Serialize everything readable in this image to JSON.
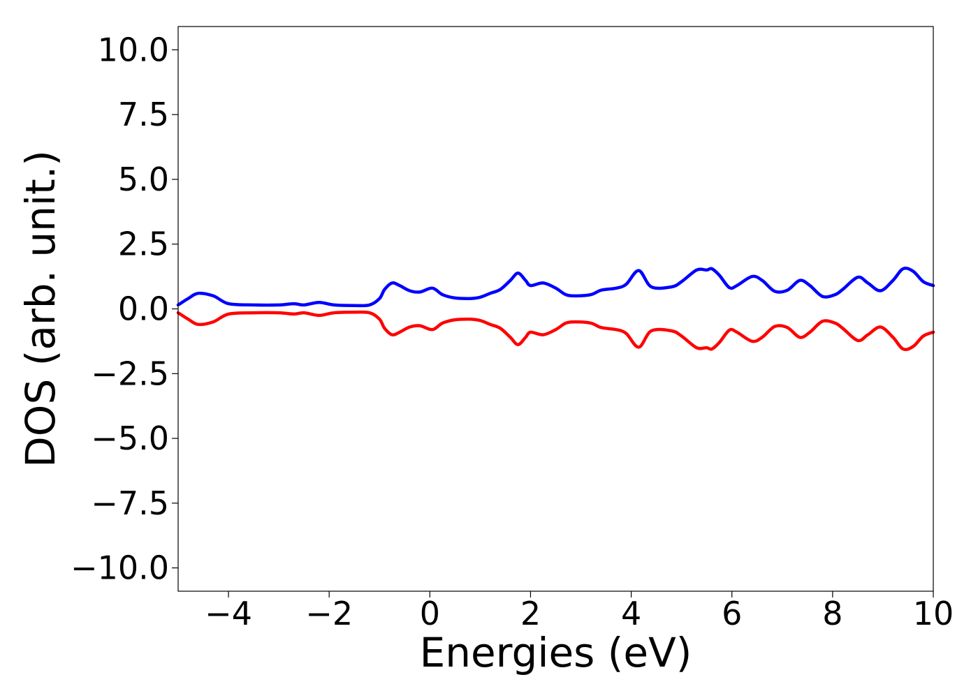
{
  "chart_data": {
    "type": "line",
    "title": "",
    "xlabel": "Energies (eV)",
    "ylabel": "DOS (arb. unit.)",
    "xlim": [
      -5,
      10
    ],
    "ylim": [
      -10.9,
      10.9
    ],
    "grid": false,
    "legend": "none",
    "xticks": [
      -4,
      -2,
      0,
      2,
      4,
      6,
      8,
      10
    ],
    "xtick_labels": [
      "−4",
      "−2",
      "0",
      "2",
      "4",
      "6",
      "8",
      "10"
    ],
    "yticks": [
      10.0,
      7.5,
      5.0,
      2.5,
      0.0,
      -2.5,
      -5.0,
      -7.5,
      -10.0
    ],
    "ytick_labels": [
      "10.0",
      "7.5",
      "5.0",
      "2.5",
      "0.0",
      "−2.5",
      "−5.0",
      "−7.5",
      "−10.0"
    ],
    "series": [
      {
        "color": "#0000ff",
        "x": [
          -5.0,
          -4.8,
          -4.6,
          -4.3,
          -4.0,
          -3.5,
          -3.0,
          -2.7,
          -2.5,
          -2.2,
          -1.9,
          -1.5,
          -1.2,
          -1.0,
          -0.9,
          -0.75,
          -0.6,
          -0.4,
          -0.2,
          0.05,
          0.25,
          0.5,
          0.8,
          1.0,
          1.2,
          1.4,
          1.6,
          1.75,
          1.9,
          2.0,
          2.25,
          2.5,
          2.7,
          2.9,
          3.2,
          3.4,
          3.7,
          3.9,
          4.15,
          4.4,
          4.8,
          5.0,
          5.3,
          5.5,
          5.6,
          5.75,
          5.95,
          6.1,
          6.4,
          6.6,
          6.85,
          7.1,
          7.35,
          7.55,
          7.8,
          8.05,
          8.2,
          8.5,
          8.7,
          8.95,
          9.2,
          9.4,
          9.6,
          9.8,
          10.0
        ],
        "y": [
          0.15,
          0.4,
          0.6,
          0.5,
          0.2,
          0.15,
          0.15,
          0.2,
          0.15,
          0.25,
          0.15,
          0.13,
          0.15,
          0.4,
          0.75,
          1.0,
          0.9,
          0.7,
          0.65,
          0.8,
          0.55,
          0.42,
          0.4,
          0.45,
          0.6,
          0.75,
          1.1,
          1.38,
          1.1,
          0.9,
          1.0,
          0.8,
          0.55,
          0.5,
          0.55,
          0.72,
          0.8,
          0.95,
          1.48,
          0.85,
          0.85,
          1.05,
          1.5,
          1.5,
          1.55,
          1.3,
          0.82,
          0.9,
          1.25,
          1.1,
          0.68,
          0.72,
          1.1,
          0.9,
          0.48,
          0.55,
          0.75,
          1.22,
          1.0,
          0.7,
          1.1,
          1.55,
          1.45,
          1.05,
          0.9
        ]
      },
      {
        "color": "#ff0000",
        "x": [
          -5.0,
          -4.8,
          -4.6,
          -4.3,
          -4.0,
          -3.5,
          -3.0,
          -2.7,
          -2.5,
          -2.2,
          -1.9,
          -1.5,
          -1.2,
          -1.0,
          -0.9,
          -0.75,
          -0.6,
          -0.4,
          -0.2,
          0.05,
          0.25,
          0.5,
          0.8,
          1.0,
          1.2,
          1.4,
          1.6,
          1.75,
          1.9,
          2.0,
          2.25,
          2.5,
          2.7,
          2.9,
          3.2,
          3.4,
          3.7,
          3.9,
          4.15,
          4.4,
          4.8,
          5.0,
          5.3,
          5.5,
          5.6,
          5.75,
          5.95,
          6.1,
          6.4,
          6.6,
          6.85,
          7.1,
          7.35,
          7.55,
          7.8,
          8.05,
          8.2,
          8.5,
          8.7,
          8.95,
          9.2,
          9.4,
          9.6,
          9.8,
          10.0
        ],
        "y": [
          -0.15,
          -0.4,
          -0.6,
          -0.5,
          -0.2,
          -0.15,
          -0.15,
          -0.2,
          -0.15,
          -0.25,
          -0.15,
          -0.13,
          -0.15,
          -0.4,
          -0.75,
          -1.0,
          -0.9,
          -0.7,
          -0.65,
          -0.8,
          -0.55,
          -0.42,
          -0.4,
          -0.45,
          -0.6,
          -0.75,
          -1.1,
          -1.38,
          -1.1,
          -0.9,
          -1.0,
          -0.8,
          -0.55,
          -0.5,
          -0.55,
          -0.72,
          -0.8,
          -0.95,
          -1.48,
          -0.85,
          -0.85,
          -1.05,
          -1.5,
          -1.5,
          -1.55,
          -1.3,
          -0.82,
          -0.9,
          -1.25,
          -1.1,
          -0.68,
          -0.72,
          -1.1,
          -0.9,
          -0.48,
          -0.55,
          -0.75,
          -1.22,
          -1.0,
          -0.7,
          -1.1,
          -1.55,
          -1.45,
          -1.05,
          -0.9
        ]
      }
    ]
  }
}
